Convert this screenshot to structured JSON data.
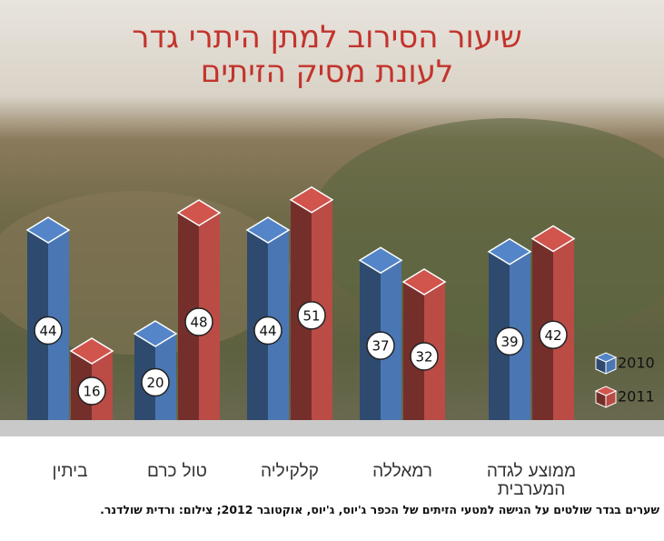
{
  "chart_data": {
    "type": "bar",
    "title": [
      "שיעור הסירוב למתן היתרי גדר",
      "לעונת מסיק הזיתים"
    ],
    "categories": [
      "ביתין",
      "טול כרם",
      "קלקיליה",
      "רמאללה",
      "ממוצע לגדה המערבית"
    ],
    "series": [
      {
        "name": "2010",
        "color": "#4a77b3",
        "values": [
          44,
          20,
          44,
          37,
          39
        ]
      },
      {
        "name": "2011",
        "color": "#bb4b45",
        "values": [
          16,
          48,
          51,
          32,
          42
        ]
      }
    ]
  },
  "caption": "שערים בגדר שולטים על הגישה למטעי הזיתים של הכפר ג'יוס, ג'יוס, אוקטובר 2012; צילום: ורדית שולדנר."
}
